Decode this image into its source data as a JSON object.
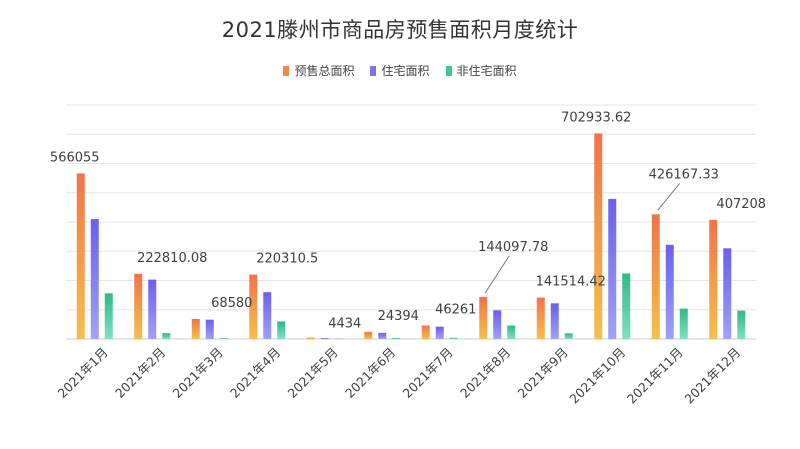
{
  "chart_data": {
    "type": "bar",
    "title": "2021滕州市商品房预售面积月度统计",
    "categories": [
      "2021年1月",
      "2021年2月",
      "2021年3月",
      "2021年4月",
      "2021年5月",
      "2021年6月",
      "2021年7月",
      "2021年8月",
      "2021年9月",
      "2021年10月",
      "2021年11月",
      "2021年12月"
    ],
    "series": [
      {
        "name": "预售总面积",
        "color": "#f0884a",
        "values": [
          566055,
          222810.08,
          68580,
          220310.5,
          4434,
          24394,
          46261,
          144097.78,
          141514.42,
          702933.62,
          426167.33,
          407208
        ]
      },
      {
        "name": "住宅面积",
        "color": "#7b74ec",
        "values": [
          410000,
          203000,
          66000,
          160000,
          3200,
          21000,
          42000,
          98000,
          122000,
          479000,
          322000,
          310000
        ]
      },
      {
        "name": "非住宅面积",
        "color": "#3fc79a",
        "values": [
          156000,
          20000,
          3000,
          60000,
          1200,
          3400,
          4000,
          46000,
          19500,
          224000,
          104000,
          97000
        ]
      }
    ],
    "data_labels": [
      "566055",
      "222810.08",
      "68580",
      "220310.5",
      "4434",
      "24394",
      "46261",
      "144097.78",
      "141514.42",
      "702933.62",
      "426167.33",
      "407208"
    ],
    "ylim": [
      0,
      800000
    ],
    "grid": true,
    "legend": "top-center",
    "xlabel": "",
    "ylabel": ""
  }
}
